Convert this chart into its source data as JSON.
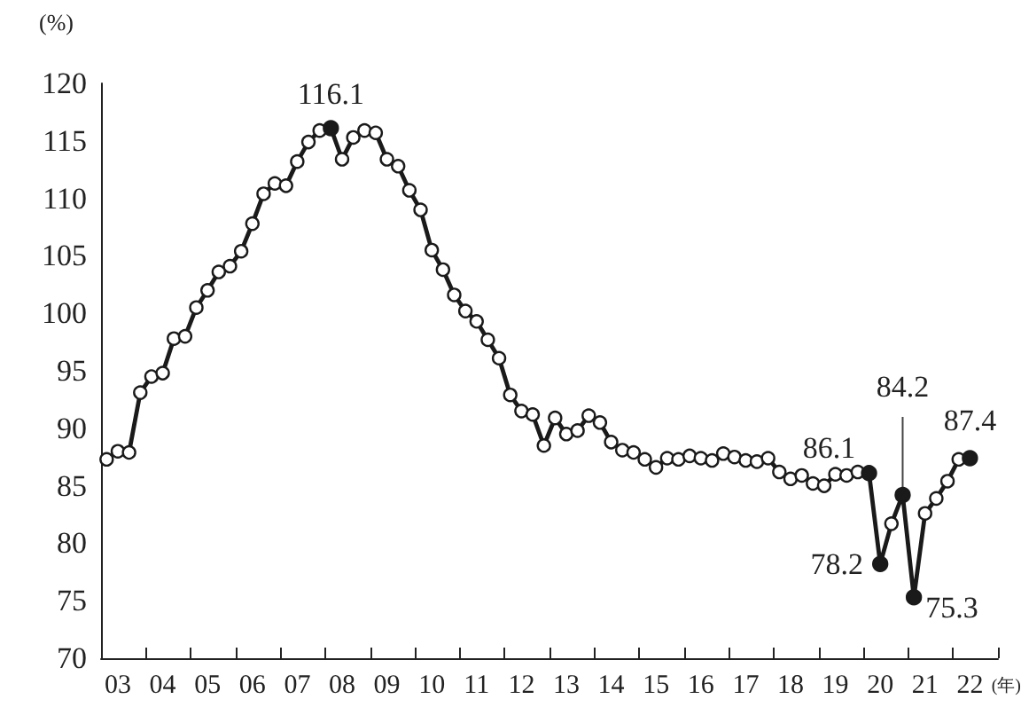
{
  "chart_data": {
    "type": "line",
    "categories": [
      null,
      "03",
      null,
      null,
      null,
      "04",
      null,
      null,
      null,
      "05",
      null,
      null,
      null,
      "06",
      null,
      null,
      null,
      "07",
      null,
      null,
      null,
      "08",
      null,
      null,
      null,
      "09",
      null,
      null,
      null,
      "10",
      null,
      null,
      null,
      "11",
      null,
      null,
      null,
      "12",
      null,
      null,
      null,
      "13",
      null,
      null,
      null,
      "14",
      null,
      null,
      null,
      "15",
      null,
      null,
      null,
      "16",
      null,
      null,
      null,
      "17",
      null,
      null,
      null,
      "18",
      null,
      null,
      null,
      "19",
      null,
      null,
      null,
      "20",
      null,
      null,
      null,
      "21",
      null,
      null,
      null,
      "22",
      null,
      null
    ],
    "series": [
      {
        "color": "#1a1a1a",
        "values": [
          87.3,
          88.0,
          87.9,
          93.1,
          94.5,
          94.8,
          97.8,
          98.0,
          100.5,
          102.0,
          103.6,
          104.1,
          105.4,
          107.8,
          110.4,
          111.3,
          111.1,
          113.2,
          114.9,
          115.9,
          116.1,
          113.4,
          115.3,
          115.9,
          115.7,
          113.4,
          112.8,
          110.7,
          109.0,
          105.5,
          103.8,
          101.6,
          100.2,
          99.3,
          97.7,
          96.1,
          92.9,
          91.5,
          91.2,
          88.5,
          90.9,
          89.5,
          89.8,
          91.1,
          90.5,
          88.8,
          88.1,
          87.9,
          87.3,
          86.6,
          87.4,
          87.3,
          87.6,
          87.4,
          87.2,
          87.8,
          87.5,
          87.2,
          87.1,
          87.4,
          86.2,
          85.6,
          85.9,
          85.2,
          85.0,
          86.0,
          85.9,
          86.2,
          86.1,
          78.2,
          81.7,
          84.2,
          75.3,
          82.6,
          83.9,
          85.4,
          87.3,
          87.4,
          null,
          null
        ],
        "value_labels": [
          null,
          null,
          null,
          null,
          null,
          null,
          null,
          null,
          null,
          null,
          null,
          null,
          null,
          null,
          null,
          null,
          null,
          null,
          null,
          null,
          "116.1",
          null,
          null,
          null,
          null,
          null,
          null,
          null,
          null,
          null,
          null,
          null,
          null,
          null,
          null,
          null,
          null,
          null,
          null,
          null,
          null,
          null,
          null,
          null,
          null,
          null,
          null,
          null,
          null,
          null,
          null,
          null,
          null,
          null,
          null,
          null,
          null,
          null,
          null,
          null,
          null,
          null,
          null,
          null,
          null,
          null,
          null,
          null,
          "86.1",
          "78.2",
          null,
          "84.2",
          "75.3",
          null,
          null,
          null,
          null,
          "87.4",
          null,
          null
        ]
      }
    ],
    "ylabel": "(%)",
    "xlabel": "(年)",
    "ylim": [
      70,
      120
    ],
    "yticks": [
      70,
      75,
      80,
      85,
      90,
      95,
      100,
      105,
      110,
      115,
      120
    ],
    "grid": false,
    "marker": "circle",
    "line_style": "solid"
  }
}
